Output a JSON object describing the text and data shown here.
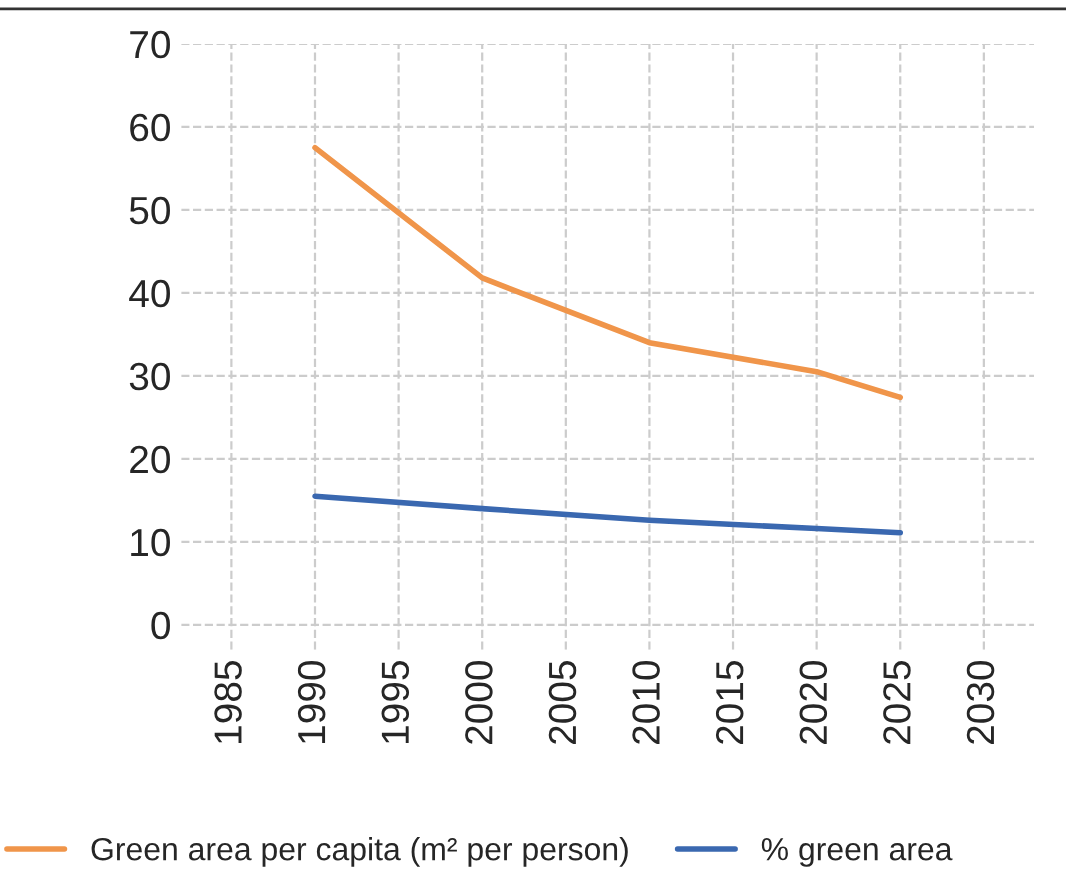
{
  "chart_data": {
    "type": "line",
    "x": [
      1990,
      2000,
      2010,
      2020,
      2025
    ],
    "series": [
      {
        "name": "Green area per capita (m² per person)",
        "color": "#f0954a",
        "values": [
          57.5,
          41.8,
          34.0,
          30.5,
          27.4
        ]
      },
      {
        "name": "% green area",
        "color": "#3a68b0",
        "values": [
          15.5,
          14.0,
          12.6,
          11.6,
          11.1
        ]
      }
    ],
    "xlim": [
      1982,
      2033
    ],
    "xticks": [
      1985,
      1990,
      1995,
      2000,
      2005,
      2010,
      2015,
      2020,
      2025,
      2030
    ],
    "ylim": [
      -3,
      70
    ],
    "yticks": [
      0,
      10,
      20,
      30,
      40,
      50,
      60,
      70
    ],
    "grid": true,
    "legend": "bottom",
    "marker": "none",
    "line_style": "solid"
  }
}
